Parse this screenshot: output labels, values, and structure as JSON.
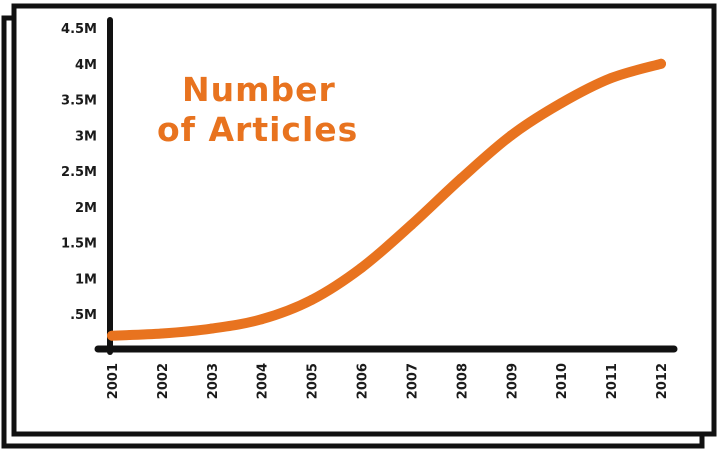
{
  "chart_data": {
    "type": "line",
    "title_lines": [
      "Number",
      "of Articles"
    ],
    "x": [
      "2001",
      "2002",
      "2003",
      "2004",
      "2005",
      "2006",
      "2007",
      "2008",
      "2009",
      "2010",
      "2011",
      "2012"
    ],
    "series": [
      {
        "values": [
          200000,
          230000,
          300000,
          430000,
          700000,
          1150000,
          1750000,
          2400000,
          3000000,
          3450000,
          3800000,
          4000000
        ]
      }
    ],
    "y_tick_labels": [
      ".5M",
      "1M",
      "1.5M",
      "2M",
      "2.5M",
      "3M",
      "3.5M",
      "4M",
      "4.5M"
    ],
    "y_tick_values": [
      500000,
      1000000,
      1500000,
      2000000,
      2500000,
      3000000,
      3500000,
      4000000,
      4500000
    ],
    "ylim": [
      0,
      4500000
    ],
    "grid": false,
    "colors": {
      "line": "#e8731f",
      "title": "#e8731f",
      "axis": "#111111",
      "frame": "#111111"
    }
  }
}
